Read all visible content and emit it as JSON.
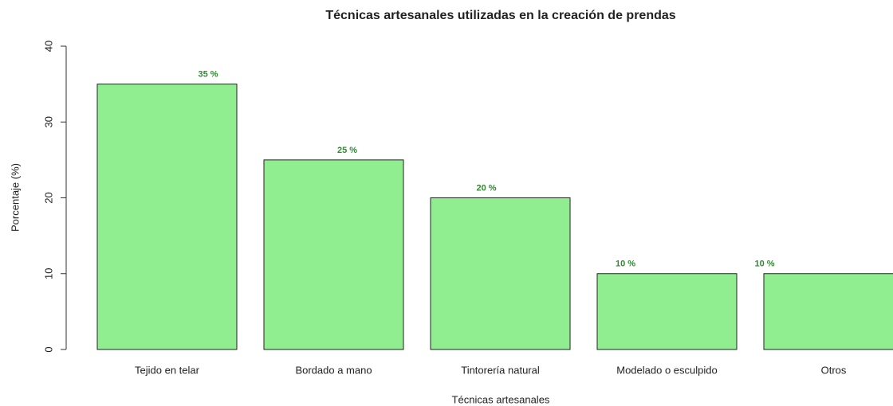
{
  "chart_data": {
    "type": "bar",
    "title": "Técnicas artesanales utilizadas en la creación de prendas",
    "xlabel": "Técnicas artesanales",
    "ylabel": "Porcentaje (%)",
    "categories": [
      "Tejido en telar",
      "Bordado a mano",
      "Tintorería natural",
      "Modelado o esculpido",
      "Otros"
    ],
    "values": [
      35,
      25,
      20,
      10,
      10
    ],
    "value_labels": [
      "35 %",
      "25 %",
      "20 %",
      "10 %",
      "10 %"
    ],
    "color": "#90ee90",
    "label_color": "#2e8b2e",
    "ylim": [
      0,
      40
    ],
    "yticks": [
      0,
      10,
      20,
      30,
      40
    ]
  }
}
